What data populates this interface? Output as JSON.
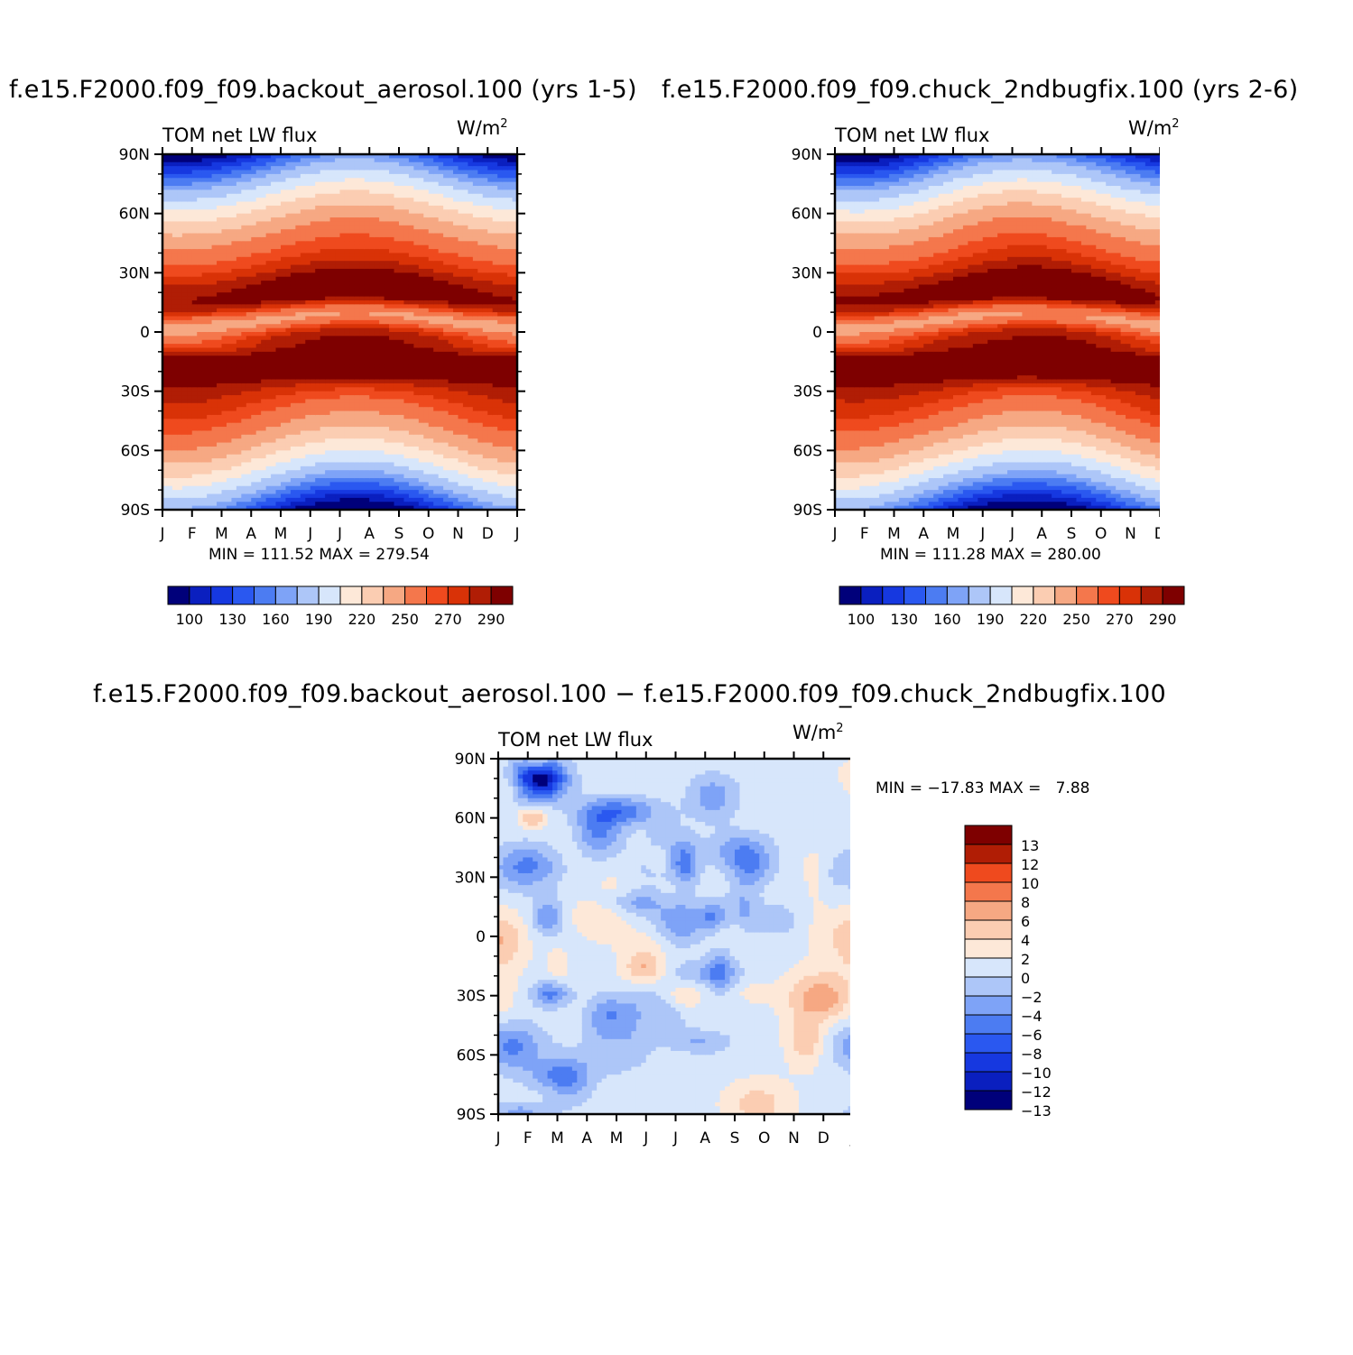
{
  "panels": [
    {
      "title": "f.e15.F2000.f09_f09.backout_aerosol.100 (yrs 1-5)",
      "variable": "TOM net LW flux",
      "units": "W/m",
      "units_sup": "2",
      "min_label": "MIN",
      "min_value": "111.52",
      "max_label": "MAX",
      "max_value": "279.54"
    },
    {
      "title": "f.e15.F2000.f09_f09.chuck_2ndbugfix.100 (yrs 2-6)",
      "variable": "TOM net LW flux",
      "units": "W/m",
      "units_sup": "2",
      "min_label": "MIN",
      "min_value": "111.28",
      "max_label": "MAX",
      "max_value": "280.00"
    },
    {
      "title": "f.e15.F2000.f09_f09.backout_aerosol.100 − f.e15.F2000.f09_f09.chuck_2ndbugfix.100",
      "variable": "TOM net LW flux",
      "units": "W/m",
      "units_sup": "2",
      "min_label": "MIN",
      "min_value": "−17.83",
      "max_label": "MAX",
      "max_value": "7.88"
    }
  ],
  "chart_data": [
    {
      "type": "heatmap",
      "title": "f.e15.F2000.f09_f09.backout_aerosol.100 (yrs 1-5)",
      "subtitle": "TOM net LW flux",
      "units": "W/m2",
      "x_ticks": [
        "J",
        "F",
        "M",
        "A",
        "M",
        "J",
        "J",
        "A",
        "S",
        "O",
        "N",
        "D",
        "J"
      ],
      "y_ticks": [
        "90N",
        "60N",
        "30N",
        "0",
        "30S",
        "60S",
        "90S"
      ],
      "ylim": [
        -90,
        90
      ],
      "min": 111.52,
      "max": 279.54,
      "colorbar": {
        "orientation": "horizontal",
        "colors": [
          "#00007a",
          "#0a1fbf",
          "#1638e0",
          "#2a58f0",
          "#4c7cf2",
          "#7ea3f7",
          "#adc6f8",
          "#d7e6fb",
          "#fde8d8",
          "#fbcdb2",
          "#f6a883",
          "#f4774c",
          "#ef4a1e",
          "#d93207",
          "#b01d05",
          "#7e0000"
        ],
        "tick_labels": [
          "100",
          "130",
          "160",
          "190",
          "220",
          "250",
          "270",
          "290"
        ]
      }
    },
    {
      "type": "heatmap",
      "title": "f.e15.F2000.f09_f09.chuck_2ndbugfix.100 (yrs 2-6)",
      "subtitle": "TOM net LW flux",
      "units": "W/m2",
      "x_ticks": [
        "J",
        "F",
        "M",
        "A",
        "M",
        "J",
        "J",
        "A",
        "S",
        "O",
        "N",
        "D",
        "J"
      ],
      "y_ticks": [
        "90N",
        "60N",
        "30N",
        "0",
        "30S",
        "60S",
        "90S"
      ],
      "ylim": [
        -90,
        90
      ],
      "min": 111.28,
      "max": 280.0,
      "colorbar": {
        "orientation": "horizontal",
        "colors": [
          "#00007a",
          "#0a1fbf",
          "#1638e0",
          "#2a58f0",
          "#4c7cf2",
          "#7ea3f7",
          "#adc6f8",
          "#d7e6fb",
          "#fde8d8",
          "#fbcdb2",
          "#f6a883",
          "#f4774c",
          "#ef4a1e",
          "#d93207",
          "#b01d05",
          "#7e0000"
        ],
        "tick_labels": [
          "100",
          "130",
          "160",
          "190",
          "220",
          "250",
          "270",
          "290"
        ]
      }
    },
    {
      "type": "heatmap",
      "title": "f.e15.F2000.f09_f09.backout_aerosol.100 − f.e15.F2000.f09_f09.chuck_2ndbugfix.100",
      "subtitle": "TOM net LW flux",
      "units": "W/m2",
      "x_ticks": [
        "J",
        "F",
        "M",
        "A",
        "M",
        "J",
        "J",
        "A",
        "S",
        "O",
        "N",
        "D",
        "J"
      ],
      "y_ticks": [
        "90N",
        "60N",
        "30N",
        "0",
        "30S",
        "60S",
        "90S"
      ],
      "ylim": [
        -90,
        90
      ],
      "min": -17.83,
      "max": 7.88,
      "colorbar": {
        "orientation": "vertical",
        "colors": [
          "#7e0000",
          "#b01d05",
          "#ef4a1e",
          "#f4774c",
          "#f6a883",
          "#fbcdb2",
          "#fde8d8",
          "#d7e6fb",
          "#adc6f8",
          "#7ea3f7",
          "#4c7cf2",
          "#2a58f0",
          "#1638e0",
          "#0a1fbf",
          "#00007a"
        ],
        "tick_labels": [
          "13",
          "12",
          "10",
          "8",
          "6",
          "4",
          "2",
          "0",
          "−2",
          "−4",
          "−6",
          "−8",
          "−10",
          "−12",
          "−13"
        ]
      }
    }
  ]
}
